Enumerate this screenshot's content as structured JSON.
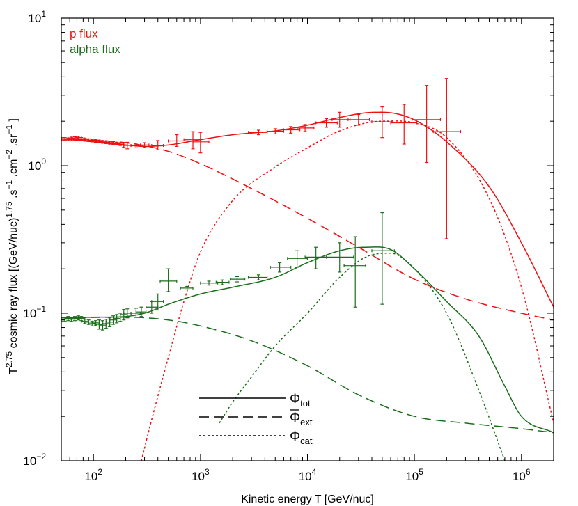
{
  "chart_data": {
    "type": "line",
    "x_scale": "log",
    "y_scale": "log",
    "xlim": [
      50,
      2000000
    ],
    "ylim": [
      0.01,
      10
    ],
    "grid": false,
    "xlabel": "Kinetic energy T [GeV/nuc]",
    "ylabel": {
      "base": "T",
      "exp1": "2.75",
      "mid1": " cosmic ray flux [(GeV/nuc)",
      "exp2": "1.75",
      "mid2": " .s",
      "exp3": "−1",
      "mid3": " .cm",
      "exp4": "−2",
      "mid4": " .sr",
      "exp5": "−1",
      "end": " ]"
    },
    "x_ticks": [
      {
        "value": 100,
        "base": "10",
        "exp": "2"
      },
      {
        "value": 1000,
        "base": "10",
        "exp": "3"
      },
      {
        "value": 10000,
        "base": "10",
        "exp": "4"
      },
      {
        "value": 100000,
        "base": "10",
        "exp": "5"
      },
      {
        "value": 1000000,
        "base": "10",
        "exp": "6"
      }
    ],
    "y_ticks": [
      {
        "value": 0.01,
        "base": "10",
        "exp": "−2"
      },
      {
        "value": 0.1,
        "base": "10",
        "exp": "−1"
      },
      {
        "value": 1,
        "base": "10",
        "exp": "0"
      },
      {
        "value": 10,
        "base": "10",
        "exp": "1"
      }
    ],
    "legend_colors": [
      {
        "label": "p flux",
        "color": "#ee1111"
      },
      {
        "label": "alpha flux",
        "color": "#1a6e1a"
      }
    ],
    "line_legend": [
      {
        "base": "Φ",
        "sub": "tot",
        "style": "solid",
        "bar": false
      },
      {
        "base": "Φ",
        "sub": "ext",
        "style": "dashed",
        "bar": true
      },
      {
        "base": "Φ",
        "sub": "cat",
        "style": "dotted",
        "bar": false
      }
    ],
    "series": [
      {
        "group": "p",
        "component": "tot",
        "color": "#ee1111",
        "style": "solid",
        "x": [
          50,
          100,
          200,
          300,
          500,
          1000,
          2000,
          5000,
          10000,
          20000,
          35000,
          50000,
          80000,
          120000,
          200000,
          500000,
          1000000,
          2000000
        ],
        "y": [
          1.52,
          1.45,
          1.38,
          1.35,
          1.38,
          1.5,
          1.62,
          1.72,
          1.88,
          2.12,
          2.28,
          2.3,
          2.18,
          1.9,
          1.45,
          0.72,
          0.3,
          0.11
        ]
      },
      {
        "group": "p",
        "component": "ext",
        "color": "#ee1111",
        "style": "dashed",
        "x": [
          50,
          200,
          500,
          1000,
          3000,
          10000,
          30000,
          100000,
          300000,
          1000000,
          2000000
        ],
        "y": [
          1.52,
          1.43,
          1.25,
          1.03,
          0.7,
          0.44,
          0.28,
          0.17,
          0.125,
          0.1,
          0.09
        ]
      },
      {
        "group": "p",
        "component": "cat",
        "color": "#ee1111",
        "style": "dotted",
        "x": [
          280,
          350,
          500,
          700,
          1000,
          2000,
          5000,
          10000,
          20000,
          50000,
          100000,
          200000,
          500000,
          1000000,
          2000000
        ],
        "y": [
          0.01,
          0.019,
          0.05,
          0.12,
          0.26,
          0.58,
          0.98,
          1.32,
          1.72,
          2.0,
          1.95,
          1.55,
          0.6,
          0.15,
          0.018
        ]
      },
      {
        "group": "alpha",
        "component": "tot",
        "color": "#1a6e1a",
        "style": "solid",
        "x": [
          50,
          100,
          200,
          300,
          500,
          1000,
          2000,
          5000,
          10000,
          20000,
          35000,
          60000,
          100000,
          200000,
          400000,
          700000,
          1000000,
          2000000
        ],
        "y": [
          0.093,
          0.094,
          0.095,
          0.1,
          0.115,
          0.135,
          0.15,
          0.175,
          0.22,
          0.265,
          0.28,
          0.27,
          0.2,
          0.12,
          0.07,
          0.032,
          0.02,
          0.0155
        ]
      },
      {
        "group": "alpha",
        "component": "ext",
        "color": "#1a6e1a",
        "style": "dashed",
        "x": [
          50,
          200,
          500,
          1000,
          3000,
          10000,
          30000,
          100000,
          300000,
          1000000,
          2000000
        ],
        "y": [
          0.093,
          0.094,
          0.09,
          0.082,
          0.065,
          0.044,
          0.028,
          0.02,
          0.018,
          0.0165,
          0.0155
        ]
      },
      {
        "group": "alpha",
        "component": "cat",
        "color": "#1a6e1a",
        "style": "dotted",
        "x": [
          1500,
          2000,
          3000,
          5000,
          10000,
          20000,
          35000,
          60000,
          100000,
          200000,
          400000,
          700000
        ],
        "y": [
          0.018,
          0.025,
          0.037,
          0.06,
          0.1,
          0.175,
          0.24,
          0.255,
          0.2,
          0.1,
          0.03,
          0.01
        ]
      }
    ],
    "data_points": [
      {
        "group": "p",
        "color": "#ee1111",
        "points": [
          [
            50,
            1.52,
            46,
            54,
            1.49,
            1.55
          ],
          [
            54,
            1.52,
            50,
            58,
            1.49,
            1.55
          ],
          [
            58,
            1.51,
            54,
            62,
            1.48,
            1.54
          ],
          [
            62,
            1.53,
            58,
            67,
            1.5,
            1.56
          ],
          [
            67,
            1.54,
            62,
            72,
            1.51,
            1.57
          ],
          [
            72,
            1.55,
            67,
            77,
            1.52,
            1.58
          ],
          [
            77,
            1.52,
            72,
            83,
            1.49,
            1.55
          ],
          [
            83,
            1.5,
            77,
            90,
            1.47,
            1.53
          ],
          [
            90,
            1.49,
            83,
            97,
            1.46,
            1.52
          ],
          [
            97,
            1.48,
            90,
            105,
            1.45,
            1.51
          ],
          [
            105,
            1.47,
            97,
            113,
            1.44,
            1.5
          ],
          [
            113,
            1.46,
            105,
            122,
            1.43,
            1.49
          ],
          [
            122,
            1.45,
            113,
            131,
            1.42,
            1.48
          ],
          [
            131,
            1.44,
            122,
            142,
            1.41,
            1.47
          ],
          [
            142,
            1.43,
            131,
            153,
            1.4,
            1.46
          ],
          [
            153,
            1.42,
            142,
            165,
            1.39,
            1.45
          ],
          [
            165,
            1.41,
            153,
            178,
            1.38,
            1.44
          ],
          [
            178,
            1.4,
            165,
            192,
            1.37,
            1.43
          ],
          [
            192,
            1.38,
            178,
            207,
            1.33,
            1.43
          ],
          [
            207,
            1.37,
            192,
            224,
            1.3,
            1.44
          ],
          [
            250,
            1.37,
            224,
            275,
            1.32,
            1.42
          ],
          [
            300,
            1.38,
            275,
            330,
            1.33,
            1.43
          ],
          [
            400,
            1.37,
            350,
            450,
            1.28,
            1.48
          ],
          [
            600,
            1.47,
            500,
            750,
            1.35,
            1.62
          ],
          [
            850,
            1.5,
            700,
            1000,
            1.3,
            1.7
          ],
          [
            1000,
            1.45,
            850,
            1200,
            1.22,
            1.68
          ],
          [
            3500,
            1.68,
            2800,
            4200,
            1.62,
            1.74
          ],
          [
            5000,
            1.71,
            4200,
            6000,
            1.64,
            1.78
          ],
          [
            7000,
            1.75,
            6000,
            8500,
            1.66,
            1.84
          ],
          [
            9500,
            1.8,
            8000,
            11500,
            1.7,
            1.9
          ],
          [
            15000,
            1.95,
            12000,
            19000,
            1.82,
            2.08
          ],
          [
            20000,
            2.05,
            17000,
            25000,
            1.82,
            2.3
          ],
          [
            30000,
            2.05,
            24000,
            38000,
            1.88,
            2.22
          ],
          [
            50000,
            1.98,
            40000,
            62000,
            1.55,
            2.5
          ],
          [
            80000,
            1.95,
            60000,
            105000,
            1.4,
            2.6
          ],
          [
            130000,
            2.05,
            95000,
            175000,
            1.05,
            3.5
          ],
          [
            200000,
            1.7,
            150000,
            270000,
            0.32,
            3.9
          ]
        ]
      },
      {
        "group": "alpha",
        "color": "#1a6e1a",
        "points": [
          [
            50,
            0.09,
            46,
            54,
            0.088,
            0.094
          ],
          [
            54,
            0.091,
            50,
            58,
            0.088,
            0.094
          ],
          [
            58,
            0.092,
            54,
            62,
            0.089,
            0.095
          ],
          [
            62,
            0.091,
            58,
            67,
            0.088,
            0.094
          ],
          [
            67,
            0.092,
            62,
            72,
            0.089,
            0.095
          ],
          [
            72,
            0.093,
            67,
            77,
            0.09,
            0.096
          ],
          [
            77,
            0.092,
            72,
            83,
            0.089,
            0.095
          ],
          [
            83,
            0.088,
            77,
            90,
            0.085,
            0.091
          ],
          [
            90,
            0.087,
            83,
            97,
            0.084,
            0.09
          ],
          [
            97,
            0.085,
            90,
            105,
            0.082,
            0.088
          ],
          [
            105,
            0.086,
            97,
            113,
            0.083,
            0.089
          ],
          [
            113,
            0.084,
            105,
            122,
            0.078,
            0.09
          ],
          [
            122,
            0.083,
            113,
            131,
            0.077,
            0.089
          ],
          [
            131,
            0.085,
            122,
            142,
            0.079,
            0.091
          ],
          [
            142,
            0.087,
            131,
            153,
            0.081,
            0.093
          ],
          [
            153,
            0.09,
            142,
            165,
            0.084,
            0.096
          ],
          [
            165,
            0.092,
            153,
            178,
            0.086,
            0.098
          ],
          [
            178,
            0.094,
            165,
            192,
            0.088,
            0.1
          ],
          [
            192,
            0.098,
            178,
            207,
            0.09,
            0.106
          ],
          [
            207,
            0.1,
            192,
            224,
            0.093,
            0.107
          ],
          [
            250,
            0.1,
            224,
            275,
            0.094,
            0.108
          ],
          [
            280,
            0.102,
            250,
            310,
            0.095,
            0.11
          ],
          [
            350,
            0.11,
            310,
            400,
            0.1,
            0.12
          ],
          [
            400,
            0.12,
            350,
            450,
            0.105,
            0.135
          ],
          [
            500,
            0.165,
            420,
            600,
            0.14,
            0.2
          ],
          [
            750,
            0.148,
            650,
            850,
            0.144,
            0.152
          ],
          [
            1200,
            0.16,
            1000,
            1450,
            0.155,
            0.165
          ],
          [
            1600,
            0.162,
            1400,
            1850,
            0.156,
            0.168
          ],
          [
            2200,
            0.17,
            1900,
            2600,
            0.163,
            0.177
          ],
          [
            3500,
            0.175,
            2800,
            4200,
            0.168,
            0.182
          ],
          [
            5500,
            0.205,
            4500,
            7000,
            0.19,
            0.22
          ],
          [
            8000,
            0.235,
            6500,
            10000,
            0.205,
            0.265
          ],
          [
            12000,
            0.24,
            9500,
            15000,
            0.2,
            0.28
          ],
          [
            20000,
            0.24,
            15000,
            27000,
            0.19,
            0.3
          ],
          [
            28000,
            0.21,
            22000,
            35000,
            0.11,
            0.33
          ],
          [
            50000,
            0.265,
            40000,
            65000,
            0.115,
            0.48
          ]
        ]
      }
    ]
  }
}
